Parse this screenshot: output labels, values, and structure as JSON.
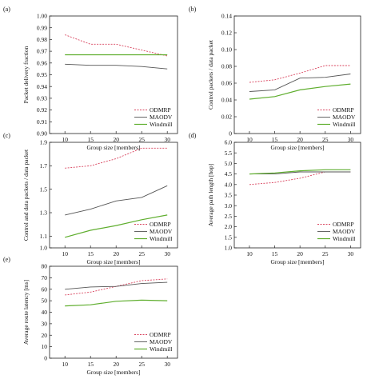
{
  "legend_labels": [
    "ODMRP",
    "MAODV",
    "Windmill"
  ],
  "colors": {
    "ODMRP": "#d9455f",
    "MAODV": "#555555",
    "Windmill": "#5fae2e"
  },
  "chart_data": [
    {
      "panel_label": "(a)",
      "type": "line",
      "x": [
        10,
        15,
        20,
        25,
        30
      ],
      "xlabel": "Group size [members]",
      "ylabel": "Packet delivery fraction",
      "ylim": [
        0.9,
        1.0
      ],
      "yticks": [
        "0.90",
        "0.91",
        "0.92",
        "0.93",
        "0.94",
        "0.95",
        "0.96",
        "0.97",
        "0.98",
        "0.99",
        "1.00"
      ],
      "grid": false,
      "legend_position": "bottom-right",
      "series": [
        {
          "name": "ODMRP",
          "values": [
            0.984,
            0.976,
            0.976,
            0.971,
            0.966
          ]
        },
        {
          "name": "MAODV",
          "values": [
            0.959,
            0.958,
            0.958,
            0.957,
            0.955
          ]
        },
        {
          "name": "Windmill",
          "values": [
            0.967,
            0.967,
            0.967,
            0.967,
            0.967
          ]
        }
      ]
    },
    {
      "panel_label": "(b)",
      "type": "line",
      "x": [
        10,
        15,
        20,
        25,
        30
      ],
      "xlabel": "Group size [members]",
      "ylabel": "Control packets / data packet",
      "ylim": [
        0,
        0.14
      ],
      "yticks": [
        "0",
        "0.02",
        "0.04",
        "0.06",
        "0.08",
        "0.10",
        "0.12",
        "0.14"
      ],
      "grid": false,
      "legend_position": "bottom-right",
      "series": [
        {
          "name": "ODMRP",
          "values": [
            0.061,
            0.064,
            0.072,
            0.081,
            0.081
          ]
        },
        {
          "name": "MAODV",
          "values": [
            0.05,
            0.052,
            0.066,
            0.067,
            0.071
          ]
        },
        {
          "name": "Windmill",
          "values": [
            0.041,
            0.044,
            0.052,
            0.056,
            0.059
          ]
        }
      ]
    },
    {
      "panel_label": "(c)",
      "type": "line",
      "x": [
        10,
        15,
        20,
        25,
        30
      ],
      "xlabel": "Group size [members]",
      "ylabel": "Control and data packets / data packet",
      "ylim": [
        1.0,
        1.9
      ],
      "yticks": [
        "1.0",
        "1.1",
        "1.3",
        "1.5",
        "1.7",
        "1.9"
      ],
      "grid": false,
      "legend_position": "bottom-right",
      "series": [
        {
          "name": "ODMRP",
          "values": [
            1.68,
            1.7,
            1.76,
            1.85,
            1.85
          ]
        },
        {
          "name": "MAODV",
          "values": [
            1.28,
            1.33,
            1.4,
            1.43,
            1.53
          ]
        },
        {
          "name": "Windmill",
          "values": [
            1.09,
            1.15,
            1.19,
            1.24,
            1.28
          ]
        }
      ]
    },
    {
      "panel_label": "(d)",
      "type": "line",
      "x": [
        10,
        15,
        20,
        25,
        30
      ],
      "xlabel": "Group size [members]",
      "ylabel": "Average path length [hop]",
      "ylim": [
        1.0,
        6.0
      ],
      "yticks": [
        "1.0",
        "1.5",
        "2.0",
        "2.5",
        "3.0",
        "3.5",
        "4.0",
        "4.5",
        "5.0",
        "5.5",
        "6.0"
      ],
      "grid": false,
      "legend_position": "bottom-right",
      "series": [
        {
          "name": "ODMRP",
          "values": [
            4.0,
            4.1,
            4.3,
            4.6,
            4.6
          ]
        },
        {
          "name": "MAODV",
          "values": [
            4.5,
            4.5,
            4.6,
            4.6,
            4.6
          ]
        },
        {
          "name": "Windmill",
          "values": [
            4.5,
            4.55,
            4.65,
            4.7,
            4.7
          ]
        }
      ]
    },
    {
      "panel_label": "(e)",
      "type": "line",
      "x": [
        10,
        15,
        20,
        25,
        30
      ],
      "xlabel": "Group size [members]",
      "ylabel": "Average route latency [ms]",
      "ylim": [
        0,
        80
      ],
      "yticks": [
        "0",
        "10",
        "20",
        "30",
        "40",
        "50",
        "60",
        "70",
        "80"
      ],
      "grid": false,
      "legend_position": "bottom-right",
      "series": [
        {
          "name": "ODMRP",
          "values": [
            55,
            57.5,
            62.5,
            67.5,
            69
          ]
        },
        {
          "name": "MAODV",
          "values": [
            60,
            62,
            62.5,
            65,
            66
          ]
        },
        {
          "name": "Windmill",
          "values": [
            45.5,
            46.5,
            49.5,
            50.5,
            50
          ]
        }
      ]
    }
  ]
}
